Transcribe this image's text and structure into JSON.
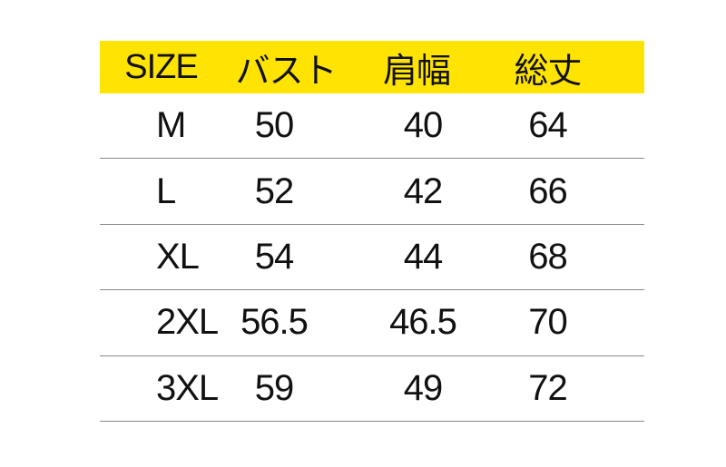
{
  "table": {
    "header": {
      "size": "SIZE",
      "bust": "バスト",
      "shoulder": "肩幅",
      "length": "総丈"
    },
    "rows": [
      {
        "size": "M",
        "bust": "50",
        "shoulder": "40",
        "length": "64"
      },
      {
        "size": "L",
        "bust": "52",
        "shoulder": "42",
        "length": "66"
      },
      {
        "size": "XL",
        "bust": "54",
        "shoulder": "44",
        "length": "68"
      },
      {
        "size": "2XL",
        "bust": "56.5",
        "shoulder": "46.5",
        "length": "70"
      },
      {
        "size": "3XL",
        "bust": "59",
        "shoulder": "49",
        "length": "72"
      }
    ]
  },
  "chart_data": {
    "type": "table",
    "title": "",
    "columns": [
      "SIZE",
      "バスト",
      "肩幅",
      "総丈"
    ],
    "rows": [
      [
        "M",
        50,
        40,
        64
      ],
      [
        "L",
        52,
        42,
        66
      ],
      [
        "XL",
        54,
        44,
        68
      ],
      [
        "2XL",
        56.5,
        46.5,
        70
      ],
      [
        "3XL",
        59,
        49,
        72
      ]
    ],
    "layout": {
      "header_background": "#ffe303",
      "row_dividers": true,
      "grid": "horizontal-lines-only"
    }
  },
  "colors": {
    "header_bg": "#ffe303",
    "text": "#111111",
    "divider": "#8a8a8a",
    "background": "#ffffff"
  }
}
